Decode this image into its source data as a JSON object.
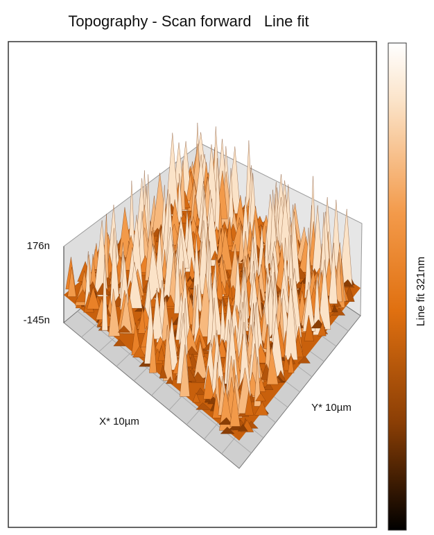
{
  "title": "Topography - Scan forward   Line fit",
  "z_axis": {
    "top_label": "176n",
    "bottom_label": "-145n"
  },
  "x_axis_label": "X* 10µm",
  "y_axis_label": "Y* 10µm",
  "colorbar_label": "Line fit 321nm"
}
